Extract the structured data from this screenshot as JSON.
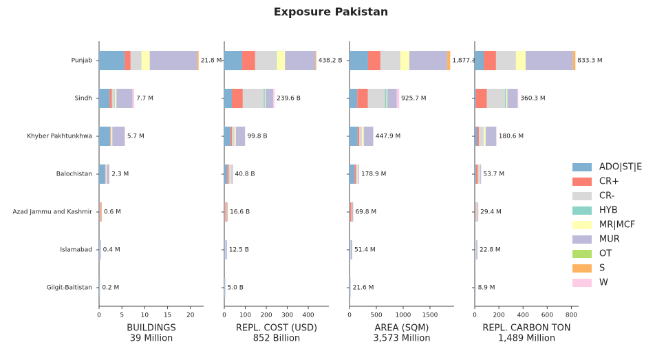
{
  "title": "Exposure Pakistan",
  "chart_data": [
    {
      "type": "barh",
      "categories": [
        "Punjab",
        "Sindh",
        "Khyber Pakhtunkhwa",
        "Balochistan",
        "Azad Jammu and Kashmir",
        "Islamabad",
        "Gilgit-Baltistan"
      ],
      "legend": "right",
      "series": [
        {
          "name": "ADO|ST|E",
          "color": "#80b1d3",
          "values": [
            5.6,
            2.3,
            2.4,
            1.3,
            0.1,
            0.1,
            0.1
          ]
        },
        {
          "name": "CR+",
          "color": "#fb8072",
          "values": [
            1.3,
            0.5,
            0.1,
            0.1,
            0.2,
            0,
            0
          ]
        },
        {
          "name": "CR-",
          "color": "#d9d9d9",
          "values": [
            2.4,
            0.6,
            0.2,
            0.2,
            0.1,
            0,
            0
          ]
        },
        {
          "name": "HYB",
          "color": "#8dd3c7",
          "values": [
            0,
            0.1,
            0,
            0,
            0,
            0,
            0
          ]
        },
        {
          "name": "MR|MCF",
          "color": "#ffffb3",
          "values": [
            1.8,
            0.3,
            0.2,
            0.1,
            0,
            0,
            0
          ]
        },
        {
          "name": "MUR",
          "color": "#bebada",
          "values": [
            10.4,
            3.5,
            2.7,
            0.5,
            0.1,
            0.3,
            0.1
          ]
        },
        {
          "name": "OT",
          "color": "#b3de69",
          "values": [
            0,
            0,
            0,
            0,
            0,
            0,
            0
          ]
        },
        {
          "name": "S",
          "color": "#fdb462",
          "values": [
            0.3,
            0,
            0,
            0,
            0.1,
            0,
            0
          ]
        },
        {
          "name": "W",
          "color": "#fccde5",
          "values": [
            0,
            0.4,
            0.1,
            0.1,
            0,
            0,
            0
          ]
        }
      ],
      "totals": [
        21.8,
        7.7,
        5.7,
        2.3,
        0.6,
        0.4,
        0.2
      ],
      "total_labels": [
        "21.8 M",
        "7.7 M",
        "5.7 M",
        "2.3 M",
        "0.6 M",
        "0.4 M",
        "0.2 M"
      ],
      "xlim": [
        0,
        22.9
      ],
      "xticks": [
        0,
        5,
        10,
        15,
        20
      ],
      "xlabel": [
        "BUILDINGS",
        "39 Million"
      ]
    },
    {
      "type": "barh",
      "series": [
        {
          "values": [
            85,
            36,
            30,
            14,
            2,
            3,
            2
          ]
        },
        {
          "values": [
            62,
            52,
            6,
            7,
            4,
            0,
            0
          ]
        },
        {
          "values": [
            100,
            100,
            14,
            10,
            4,
            3,
            1
          ]
        },
        {
          "values": [
            2,
            5,
            0,
            0,
            0,
            0,
            0
          ]
        },
        {
          "values": [
            40,
            3,
            5,
            3,
            0,
            0,
            0
          ]
        },
        {
          "values": [
            145,
            37,
            44,
            5.8,
            3.6,
            6.5,
            2
          ]
        },
        {
          "values": [
            0,
            0,
            0,
            0,
            0,
            0,
            0
          ]
        },
        {
          "values": [
            4.2,
            0,
            0,
            0,
            3,
            0,
            0
          ]
        },
        {
          "values": [
            0,
            6.6,
            0.8,
            1,
            0,
            0,
            0
          ]
        }
      ],
      "totals": [
        438.2,
        239.6,
        99.8,
        40.8,
        16.6,
        12.5,
        5.0
      ],
      "total_labels": [
        "438.2 B",
        "239.6 B",
        "99.8 B",
        "40.8 B",
        "16.6 B",
        "12.5 B",
        "5.0 B"
      ],
      "xlim": [
        0,
        498
      ],
      "xticks": [
        0,
        100,
        200,
        300,
        400
      ],
      "xlabel": [
        "REPL. COST (USD)",
        "852 Billion"
      ]
    },
    {
      "type": "barh",
      "series": [
        {
          "values": [
            346,
            145,
            150,
            95,
            10,
            15,
            10
          ]
        },
        {
          "values": [
            230,
            195,
            30,
            25,
            25,
            0,
            0
          ]
        },
        {
          "values": [
            372,
            320,
            55,
            30,
            10,
            10,
            5
          ]
        },
        {
          "values": [
            0,
            30,
            0,
            0,
            0,
            0,
            0
          ]
        },
        {
          "values": [
            167,
            15,
            30,
            10,
            0,
            0,
            0
          ]
        },
        {
          "values": [
            705,
            175,
            175,
            15,
            20,
            26.4,
            6.6
          ]
        },
        {
          "values": [
            0,
            0,
            0,
            0,
            0,
            0,
            0
          ]
        },
        {
          "values": [
            57.3,
            0,
            0,
            0,
            4.8,
            0,
            0
          ]
        },
        {
          "values": [
            0,
            45.7,
            7.9,
            3.9,
            0,
            0,
            0
          ]
        }
      ],
      "totals": [
        1877.3,
        925.7,
        447.9,
        178.9,
        69.8,
        51.4,
        21.6
      ],
      "total_labels": [
        "1,877.3 M",
        "925.7 M",
        "447.9 M",
        "178.9 M",
        "69.8 M",
        "51.4 M",
        "21.6 M"
      ],
      "xlim": [
        0,
        1950
      ],
      "xticks": [
        0,
        500,
        1000,
        1500
      ],
      "xlabel": [
        "AREA (SQM)",
        "3,573 Million"
      ]
    },
    {
      "type": "barh",
      "series": [
        {
          "values": [
            74,
            10,
            20,
            10,
            3,
            4,
            2
          ]
        },
        {
          "values": [
            102,
            90,
            15,
            15,
            5,
            0,
            0
          ]
        },
        {
          "values": [
            165,
            150,
            40,
            18,
            15,
            10,
            4
          ]
        },
        {
          "values": [
            0,
            10,
            0,
            0,
            0,
            0,
            0
          ]
        },
        {
          "values": [
            80,
            10,
            15,
            3,
            0,
            0,
            0
          ]
        },
        {
          "values": [
            392,
            85,
            88,
            6.7,
            5,
            8.8,
            2.9
          ]
        },
        {
          "values": [
            0,
            0,
            0,
            0,
            0,
            0,
            0
          ]
        },
        {
          "values": [
            20.3,
            0,
            0,
            0,
            1.4,
            0,
            0
          ]
        },
        {
          "values": [
            0,
            5.3,
            2.6,
            1,
            0,
            0,
            0
          ]
        }
      ],
      "totals": [
        833.3,
        360.3,
        180.6,
        53.7,
        29.4,
        22.8,
        8.9
      ],
      "total_labels": [
        "833.3 M",
        "360.3 M",
        "180.6 M",
        "53.7 M",
        "29.4 M",
        "22.8 M",
        "8.9 M"
      ],
      "xlim": [
        0,
        860
      ],
      "xticks": [
        0,
        200,
        400,
        600,
        800
      ],
      "xlabel": [
        "REPL. CARBON TON",
        "1,489 Million"
      ]
    }
  ]
}
